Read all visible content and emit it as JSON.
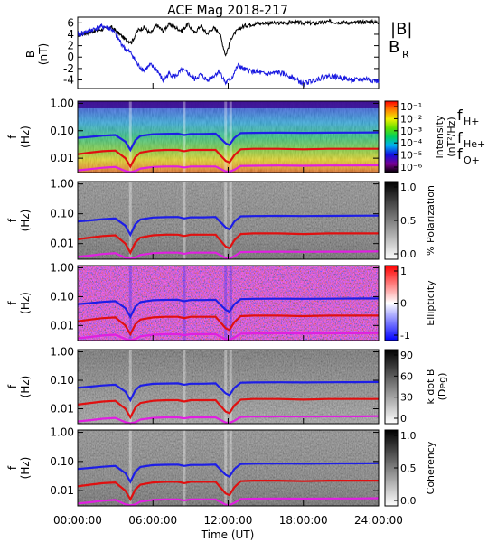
{
  "title": "ACE Mag 2018-217",
  "xlabel": "Time (UT)",
  "xticks": [
    "00:00:00",
    "06:00:00",
    "12:00:00",
    "18:00:00",
    "24:00:00"
  ],
  "colors": {
    "B": "#000000",
    "BR": "#1818e0",
    "H": "#1e1ee6",
    "He": "#e01010",
    "O": "#e020e0"
  },
  "chart_data": [
    {
      "type": "line",
      "panel": "B-field",
      "ylabel": "B",
      "yunit": "(nT)",
      "yticks": [
        "6",
        "4",
        "2",
        "0",
        "-2",
        "-4"
      ],
      "ylim": [
        -5.5,
        7
      ],
      "xlim": [
        0,
        24
      ],
      "legend": [
        "|B|",
        "B_R"
      ],
      "series": [
        {
          "name": "|B|",
          "x": [
            0,
            1,
            2,
            2.7,
            3.3,
            3.8,
            4.3,
            4.8,
            5.3,
            5.8,
            6.3,
            6.8,
            7.3,
            7.8,
            8.3,
            8.8,
            9.3,
            9.8,
            10.3,
            10.8,
            11.3,
            11.8,
            12.3,
            12.8,
            13.3,
            14,
            15,
            16,
            17,
            18,
            19,
            20,
            21,
            22,
            23,
            24
          ],
          "y": [
            3.8,
            4.4,
            4.9,
            5.2,
            4.1,
            3.1,
            2.6,
            4.7,
            5.2,
            4.1,
            5.6,
            4.6,
            5.8,
            5.2,
            4.6,
            5.8,
            4.2,
            5.5,
            4.1,
            5.1,
            4.4,
            0.3,
            3.6,
            4.8,
            5.5,
            5.8,
            6.0,
            5.9,
            6.1,
            6.0,
            5.9,
            6.2,
            6.1,
            6.0,
            6.2,
            6.1
          ]
        },
        {
          "name": "B_R",
          "x": [
            0,
            1,
            2,
            2.7,
            3.3,
            3.8,
            4.3,
            4.8,
            5.3,
            5.8,
            6.3,
            6.8,
            7.3,
            7.8,
            8.3,
            8.8,
            9.3,
            9.8,
            10.3,
            10.8,
            11.3,
            11.8,
            12.3,
            12.8,
            13.3,
            14,
            15,
            16,
            17,
            18,
            19,
            20,
            21,
            22,
            23,
            24
          ],
          "y": [
            3.9,
            4.7,
            5.4,
            4.9,
            3.0,
            1.4,
            0.6,
            -1.4,
            -2.3,
            -1.4,
            -2.2,
            -4.1,
            -2.9,
            -3.4,
            -2.3,
            -2.8,
            -3.9,
            -3.1,
            -4.0,
            -3.4,
            -2.4,
            -4.6,
            -3.6,
            -1.4,
            -2.2,
            -2.5,
            -3.0,
            -2.7,
            -3.4,
            -4.7,
            -3.9,
            -3.3,
            -3.6,
            -4.1,
            -3.8,
            -4.3
          ]
        }
      ]
    },
    {
      "type": "heatmap",
      "panel": "Intensity",
      "ylabel": "f",
      "yunit": "(Hz)",
      "yticks": [
        "1.00",
        "0.10",
        "0.01"
      ],
      "yscale": "log",
      "ylim": [
        0.003,
        1.2
      ],
      "colorbar_label": "Intensity",
      "colorbar_unit": "(nT²/Hz)",
      "colorbar_ticks": [
        "10⁻¹",
        "10⁻²",
        "10⁻³",
        "10⁻⁴",
        "10⁻⁵",
        "10⁻⁶"
      ],
      "colorbar_style": "rainbow",
      "legend": [
        "f_H+",
        "f_He+",
        "f_O+"
      ]
    },
    {
      "type": "heatmap",
      "panel": "Polarization",
      "ylabel": "f",
      "yunit": "(Hz)",
      "yticks": [
        "1.00",
        "0.10",
        "0.01"
      ],
      "yscale": "log",
      "colorbar_label": "% Polarization",
      "colorbar_ticks": [
        "1.0",
        "0.5",
        "0.0"
      ],
      "colorbar_style": "gray"
    },
    {
      "type": "heatmap",
      "panel": "Ellipticity",
      "ylabel": "f",
      "yunit": "(Hz)",
      "yticks": [
        "1.00",
        "0.10",
        "0.01"
      ],
      "yscale": "log",
      "colorbar_label": "Ellipticity",
      "colorbar_ticks": [
        "1",
        "0",
        "-1"
      ],
      "colorbar_style": "bwr"
    },
    {
      "type": "heatmap",
      "panel": "k dot B",
      "ylabel": "f",
      "yunit": "(Hz)",
      "yticks": [
        "1.00",
        "0.10",
        "0.01"
      ],
      "yscale": "log",
      "colorbar_label": "k dot B",
      "colorbar_unit": "(Deg)",
      "colorbar_ticks": [
        "90",
        "60",
        "30",
        "0"
      ],
      "colorbar_style": "gray"
    },
    {
      "type": "heatmap",
      "panel": "Coherency",
      "ylabel": "f",
      "yunit": "(Hz)",
      "yticks": [
        "1.00",
        "0.10",
        "0.01"
      ],
      "yscale": "log",
      "colorbar_label": "Coherency",
      "colorbar_ticks": [
        "1.0",
        "0.5",
        "0.0"
      ],
      "colorbar_style": "gray"
    }
  ],
  "gyrofrequency_lines": {
    "x": [
      0,
      1,
      2,
      3,
      3.8,
      4.2,
      4.6,
      5,
      6,
      7,
      8,
      8.5,
      9,
      10,
      11,
      11.8,
      12.1,
      12.5,
      13,
      14,
      16,
      18,
      20,
      22,
      24
    ],
    "H": [
      0.055,
      0.06,
      0.066,
      0.07,
      0.04,
      0.02,
      0.045,
      0.065,
      0.075,
      0.077,
      0.078,
      0.07,
      0.076,
      0.076,
      0.078,
      0.035,
      0.03,
      0.055,
      0.082,
      0.084,
      0.085,
      0.084,
      0.085,
      0.086,
      0.087
    ],
    "He": [
      0.014,
      0.016,
      0.018,
      0.019,
      0.01,
      0.005,
      0.011,
      0.016,
      0.019,
      0.02,
      0.02,
      0.018,
      0.02,
      0.02,
      0.02,
      0.008,
      0.007,
      0.013,
      0.021,
      0.022,
      0.022,
      0.021,
      0.022,
      0.022,
      0.022
    ],
    "O": [
      0.0036,
      0.004,
      0.0045,
      0.0048,
      0.0034,
      0.0031,
      0.0034,
      0.0042,
      0.0048,
      0.005,
      0.005,
      0.0046,
      0.005,
      0.005,
      0.005,
      0.0033,
      0.0032,
      0.0038,
      0.0052,
      0.0053,
      0.0054,
      0.0053,
      0.0054,
      0.0054,
      0.0055
    ]
  }
}
